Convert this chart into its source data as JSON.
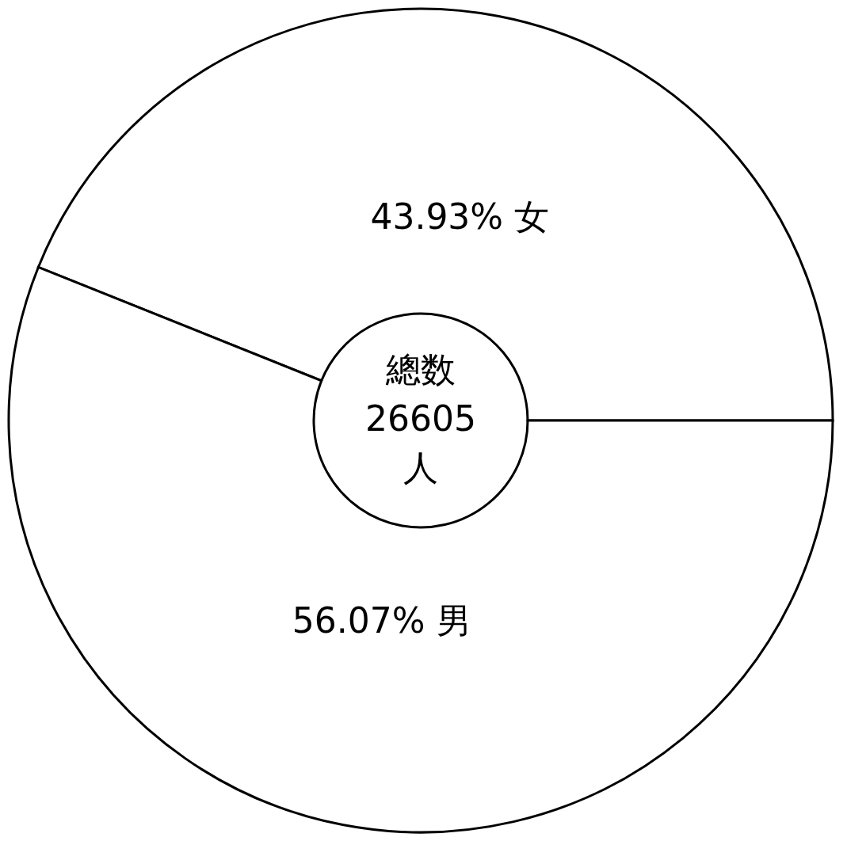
{
  "chart_data": {
    "type": "donut",
    "categories": [
      "女",
      "男"
    ],
    "values": [
      43.93,
      56.07
    ],
    "value_labels": [
      "43.93%",
      "56.07%"
    ],
    "colors": [
      "#ffffff",
      "#ffffff"
    ],
    "annotations": [
      "總数",
      "26605",
      "人"
    ],
    "legend": false
  }
}
